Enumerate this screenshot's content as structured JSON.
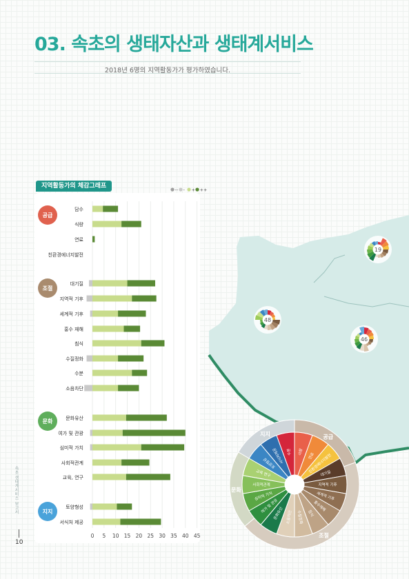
{
  "page": {
    "title": "03. 속초의 생태자산과 생태계서비스",
    "subtitle": "2018년 6명의 지역활동가가 평가하였습니다.",
    "page_number": "10",
    "margin_text": "속초 생태계서비스 보고서",
    "accent_color": "#26a89a"
  },
  "chart_data": {
    "type": "bar",
    "title": "지역활동가의 체감그래프",
    "xlim": [
      0,
      45
    ],
    "x_ticks": [
      "0",
      "5",
      "10",
      "15",
      "20",
      "25",
      "30",
      "35",
      "40",
      "45"
    ],
    "legend": {
      "placement": "top-right",
      "items": [
        {
          "label": "--",
          "color": "#9e9e9e"
        },
        {
          "label": "-",
          "color": "#c9c9c9"
        },
        {
          "label": "+",
          "color": "#c8dc8c"
        },
        {
          "label": "++",
          "color": "#5a8a35"
        }
      ]
    },
    "groups": [
      {
        "label": "공급",
        "color": "#e0614e",
        "items": [
          "담수",
          "식량",
          "연료",
          "친환경에너지발전"
        ]
      },
      {
        "label": "조절",
        "color": "#a98b6e",
        "items": [
          "대기질",
          "지역적 기후",
          "세계적 기후",
          "홍수 재해",
          "침식",
          "수질정화",
          "수분",
          "소음차단"
        ]
      },
      {
        "label": "문화",
        "color": "#5fae5c",
        "items": [
          "문화유산",
          "여가 및 관광",
          "심미적 가치",
          "사회적관계",
          "교육, 연구"
        ]
      },
      {
        "label": "지지",
        "color": "#4aa3da",
        "items": [
          "토양형성",
          "서식처 제공"
        ]
      }
    ],
    "series": [
      {
        "name": "--",
        "color": "#9e9e9e",
        "values": [
          0,
          0,
          0,
          0,
          0,
          0,
          0,
          0,
          0,
          0,
          0,
          0,
          0,
          0,
          0,
          0,
          0,
          0,
          0
        ]
      },
      {
        "name": "-",
        "color": "#c9c9c9",
        "values": [
          0,
          0,
          0,
          0,
          1.5,
          2.5,
          1,
          0,
          0,
          2.5,
          0,
          3.5,
          0,
          1,
          1,
          0,
          0,
          1,
          0
        ]
      },
      {
        "name": "+",
        "color": "#c8dc8c",
        "values": [
          4.5,
          12.5,
          0,
          0,
          15,
          17,
          11,
          13.5,
          21,
          11,
          17,
          11,
          14.5,
          13,
          21,
          12.5,
          14.5,
          10.5,
          12
        ]
      },
      {
        "name": "++",
        "color": "#5a8a35",
        "values": [
          6.5,
          8.5,
          1,
          0,
          12,
          10.5,
          12,
          7,
          10,
          11,
          6.5,
          9,
          17.5,
          27,
          18.5,
          12,
          19,
          6.5,
          17.5
        ]
      }
    ]
  },
  "map": {
    "sites": [
      {
        "label": "19"
      },
      {
        "label": "48"
      },
      {
        "label": "46"
      }
    ]
  },
  "wheel": {
    "categories": [
      "지지",
      "공급",
      "조절",
      "문화"
    ],
    "segments": [
      "토양형성",
      "서식처제공",
      "수분",
      "식량",
      "연료",
      "친환경에너지발전",
      "대기질",
      "지역적 기후",
      "세계적 기후",
      "홍수재해",
      "침식",
      "수질정화",
      "소음차단",
      "문화유산",
      "여가 및 관광",
      "심미적 가치",
      "사회적관계",
      "교육 연구"
    ]
  }
}
